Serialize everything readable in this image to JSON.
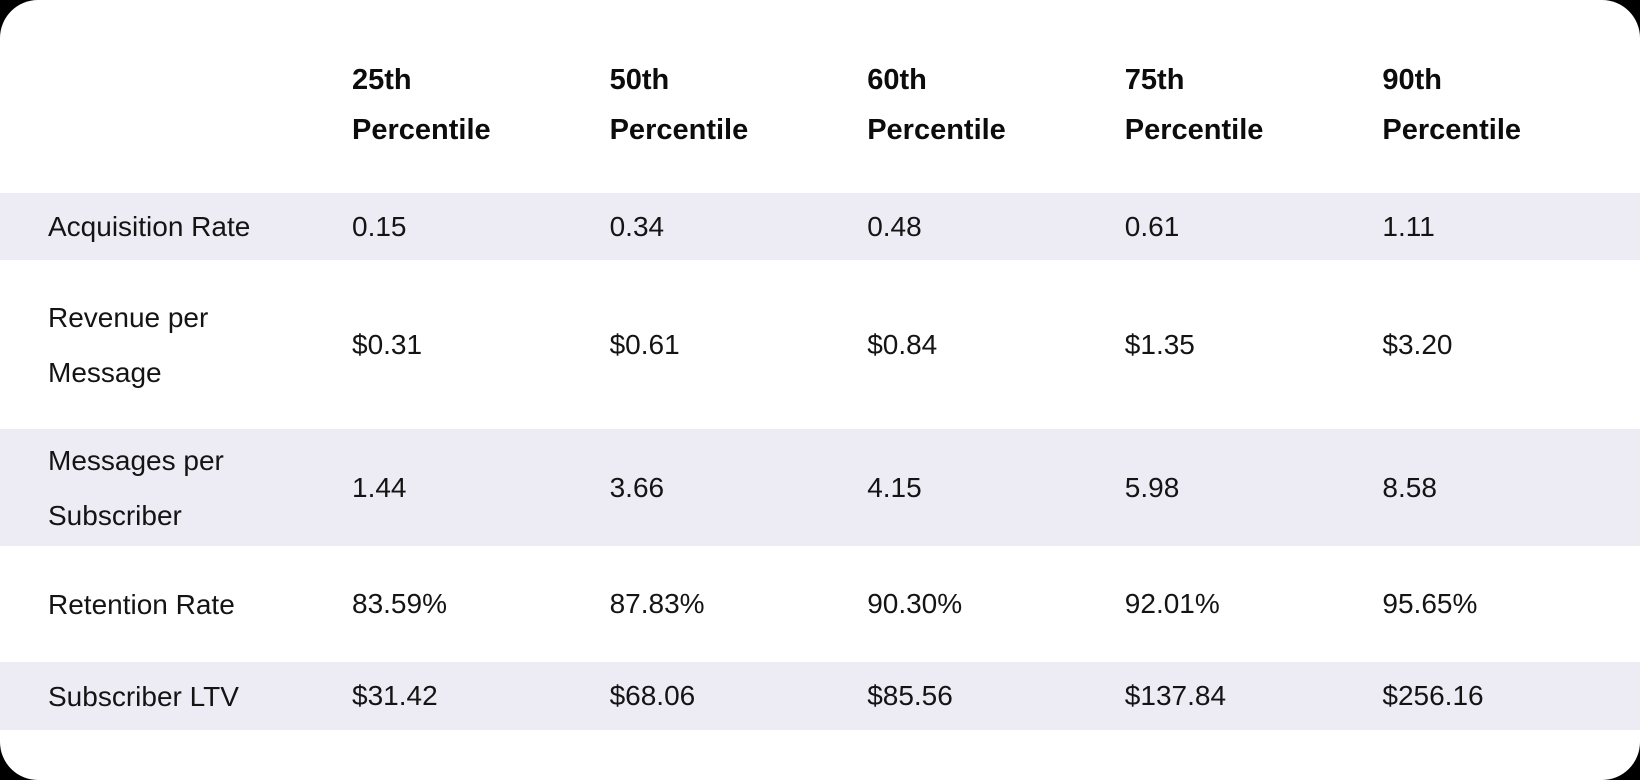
{
  "colors": {
    "page_background": "#000000",
    "card_background": "#ffffff",
    "stripe_row_background": "#edecf5",
    "body_text": "#141414",
    "header_text": "#0c0c0c"
  },
  "chart_data": {
    "type": "table",
    "title": "",
    "columns": [
      "",
      "25th Percentile",
      "50th Percentile",
      "60th Percentile",
      "75th Percentile",
      "90th Percentile"
    ],
    "rows": [
      {
        "label": "Acquisition Rate",
        "values": [
          "0.15",
          "0.34",
          "0.48",
          "0.61",
          "1.11"
        ]
      },
      {
        "label": "Revenue per Message",
        "values": [
          "$0.31",
          "$0.61",
          "$0.84",
          "$1.35",
          "$3.20"
        ]
      },
      {
        "label": "Messages per Subscriber",
        "values": [
          "1.44",
          "3.66",
          "4.15",
          "5.98",
          "8.58"
        ]
      },
      {
        "label": "Retention Rate",
        "values": [
          "83.59%",
          "87.83%",
          "90.30%",
          "92.01%",
          "95.65%"
        ]
      },
      {
        "label": "Subscriber LTV",
        "values": [
          "$31.42",
          "$68.06",
          "$85.56",
          "$137.84",
          "$256.16"
        ]
      }
    ]
  }
}
